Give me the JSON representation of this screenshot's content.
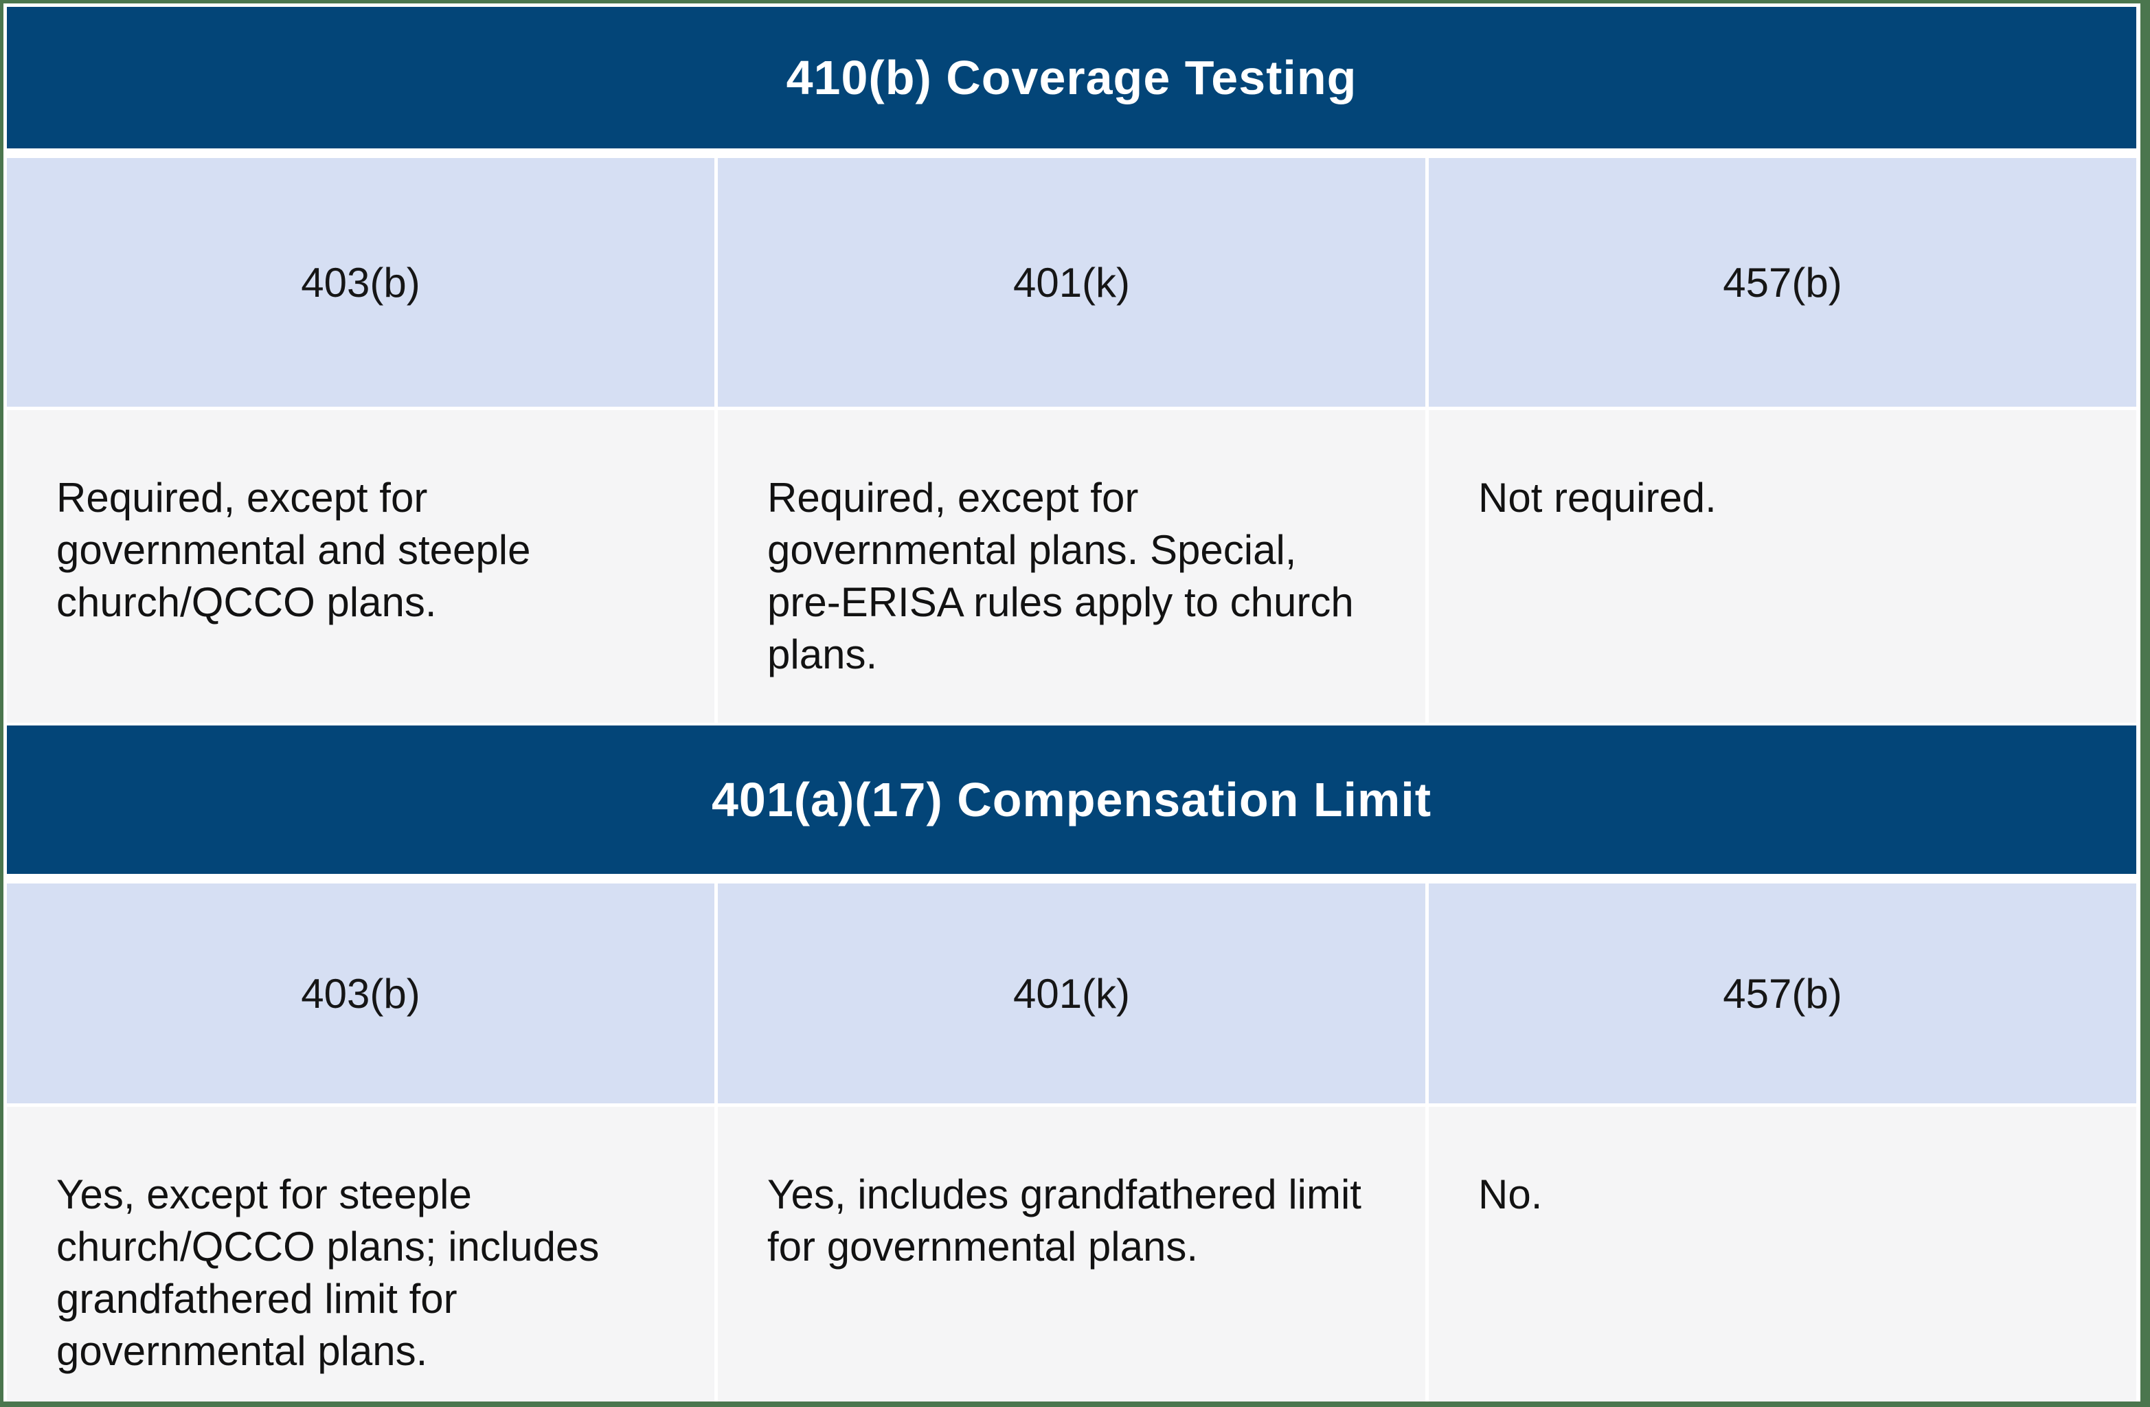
{
  "chart_data": [
    {
      "type": "table",
      "title": "410(b) Coverage Testing",
      "columns": [
        "403(b)",
        "401(k)",
        "457(b)"
      ],
      "rows": [
        [
          "Required, except for governmental and steeple church/QCCO plans.",
          "Required, except for governmental plans. Special, pre-ERISA rules apply to church plans.",
          "Not required."
        ]
      ]
    },
    {
      "type": "table",
      "title": "401(a)(17) Compensation Limit",
      "columns": [
        "403(b)",
        "401(k)",
        "457(b)"
      ],
      "rows": [
        [
          "Yes, except for steeple church/QCCO plans; includes grandfathered limit for governmental plans.",
          "Yes, includes grandfathered limit for governmental plans.",
          "No."
        ]
      ]
    }
  ],
  "colors": {
    "section_header_bg": "#034578",
    "section_header_text": "#FFFFFF",
    "column_header_bg": "#D6DFF3",
    "body_cell_bg": "#F5F5F6",
    "frame_border": "#4B764E",
    "gap": "#FFFFFF",
    "body_text": "#121212"
  }
}
